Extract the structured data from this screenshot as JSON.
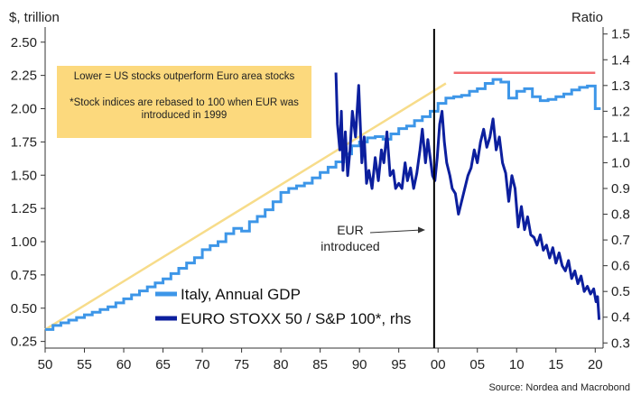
{
  "chart_data": {
    "type": "line",
    "left_axis_unit": "$, trillion",
    "right_axis_unit": "Ratio",
    "x_ticks": [
      "50",
      "55",
      "60",
      "65",
      "70",
      "75",
      "80",
      "85",
      "90",
      "95",
      "00",
      "05",
      "10",
      "15",
      "20"
    ],
    "y_left_ticks": [
      "0.25",
      "0.50",
      "0.75",
      "1.00",
      "1.25",
      "1.50",
      "1.75",
      "2.00",
      "2.25",
      "2.50"
    ],
    "y_right_ticks": [
      "0.3",
      "0.4",
      "0.5",
      "0.6",
      "0.7",
      "0.8",
      "0.9",
      "1.0",
      "1.1",
      "1.2",
      "1.3",
      "1.4",
      "1.5"
    ],
    "x_range": [
      1950,
      2021
    ],
    "y_left_range": [
      0.2,
      2.6
    ],
    "y_right_range": [
      0.28,
      1.52
    ],
    "annotation_box": {
      "line1": "Lower = US stocks outperform Euro area stocks",
      "line2": "*Stock indices are rebased to 100 when EUR was",
      "line3": "introduced in 1999"
    },
    "eur_label": {
      "line1": "EUR",
      "line2": "introduced"
    },
    "eur_year": 1999.5,
    "source": "Source: Nordea and Macrobond",
    "legend": [
      {
        "label": "Italy, Annual GDP",
        "color": "#3d96e8"
      },
      {
        "label": "EURO STOXX 50 / S&P 100*, rhs",
        "color": "#0c1f9e"
      }
    ],
    "colors": {
      "gdp": "#3d96e8",
      "ratio": "#0c1f9e",
      "trend_pre": "#f7dc8a",
      "trend_post": "#f26b6f",
      "box": "#fcd97d",
      "eur_line": "#000000"
    },
    "series": [
      {
        "name": "Italy, Annual GDP",
        "axis": "left",
        "step": true,
        "x": [
          1950,
          1951,
          1952,
          1953,
          1954,
          1955,
          1956,
          1957,
          1958,
          1959,
          1960,
          1961,
          1962,
          1963,
          1964,
          1965,
          1966,
          1967,
          1968,
          1969,
          1970,
          1971,
          1972,
          1973,
          1974,
          1975,
          1976,
          1977,
          1978,
          1979,
          1980,
          1981,
          1982,
          1983,
          1984,
          1985,
          1986,
          1987,
          1988,
          1989,
          1990,
          1991,
          1992,
          1993,
          1994,
          1995,
          1996,
          1997,
          1998,
          1999,
          2000,
          2001,
          2002,
          2003,
          2004,
          2005,
          2006,
          2007,
          2008,
          2009,
          2010,
          2011,
          2012,
          2013,
          2014,
          2015,
          2016,
          2017,
          2018,
          2019,
          2020
        ],
        "values": [
          0.34,
          0.37,
          0.39,
          0.41,
          0.43,
          0.45,
          0.47,
          0.49,
          0.51,
          0.54,
          0.57,
          0.6,
          0.63,
          0.66,
          0.69,
          0.72,
          0.76,
          0.8,
          0.84,
          0.88,
          0.94,
          0.97,
          1.0,
          1.06,
          1.1,
          1.08,
          1.15,
          1.19,
          1.24,
          1.3,
          1.37,
          1.4,
          1.42,
          1.44,
          1.48,
          1.52,
          1.56,
          1.6,
          1.66,
          1.72,
          1.75,
          1.78,
          1.79,
          1.77,
          1.81,
          1.85,
          1.87,
          1.91,
          1.94,
          1.98,
          2.04,
          2.08,
          2.09,
          2.1,
          2.13,
          2.15,
          2.19,
          2.22,
          2.2,
          2.08,
          2.13,
          2.15,
          2.09,
          2.06,
          2.07,
          2.09,
          2.11,
          2.14,
          2.16,
          2.17,
          2.0
        ]
      },
      {
        "name": "Italy GDP trend 1950-2000",
        "axis": "left",
        "x": [
          1950,
          2001
        ],
        "values": [
          0.34,
          2.19
        ]
      },
      {
        "name": "Italy GDP level since 2002",
        "axis": "left",
        "x": [
          2002,
          2020
        ],
        "values": [
          2.27,
          2.27
        ]
      },
      {
        "name": "EURO STOXX 50 / S&P 100*, rhs",
        "axis": "right",
        "x": [
          1987,
          1987.2,
          1987.5,
          1987.7,
          1987.9,
          1988.2,
          1988.5,
          1988.8,
          1989.1,
          1989.5,
          1989.9,
          1990.3,
          1990.6,
          1990.9,
          1991.2,
          1991.6,
          1992,
          1992.4,
          1992.8,
          1993.1,
          1993.5,
          1993.9,
          1994.3,
          1994.6,
          1995,
          1995.4,
          1995.8,
          1996.1,
          1996.5,
          1996.9,
          1997.3,
          1997.7,
          1998,
          1998.4,
          1998.7,
          1999,
          1999.3,
          1999.6,
          1999.9,
          2000.2,
          2000.5,
          2000.8,
          2001.1,
          2001.5,
          2001.8,
          2002.2,
          2002.6,
          2003,
          2003.4,
          2003.8,
          2004.2,
          2004.6,
          2005,
          2005.4,
          2005.8,
          2006.2,
          2006.6,
          2007,
          2007.4,
          2007.8,
          2008.2,
          2008.6,
          2009,
          2009.4,
          2009.8,
          2010.2,
          2010.6,
          2011,
          2011.4,
          2011.8,
          2012.2,
          2012.6,
          2013,
          2013.4,
          2013.8,
          2014.2,
          2014.6,
          2015,
          2015.4,
          2015.8,
          2016.2,
          2016.6,
          2017,
          2017.4,
          2017.8,
          2018.2,
          2018.6,
          2019,
          2019.4,
          2019.8,
          2020.1,
          2020.3,
          2020.5
        ],
        "values": [
          1.35,
          1.15,
          1.05,
          1.2,
          0.97,
          1.12,
          0.95,
          1.05,
          1.2,
          1.1,
          1.3,
          1.0,
          1.1,
          0.92,
          0.97,
          0.9,
          1.02,
          0.93,
          1.05,
          1.0,
          1.12,
          0.95,
          0.97,
          0.9,
          0.92,
          0.9,
          1.0,
          0.93,
          0.98,
          0.9,
          0.96,
          1.05,
          1.13,
          1.0,
          1.09,
          1.02,
          0.95,
          0.93,
          1.02,
          1.15,
          1.2,
          1.08,
          1.0,
          0.95,
          0.9,
          0.88,
          0.8,
          0.85,
          0.9,
          0.95,
          0.98,
          1.05,
          1.0,
          1.08,
          1.13,
          1.06,
          1.1,
          1.17,
          1.05,
          1.1,
          1.0,
          0.96,
          0.85,
          0.95,
          0.9,
          0.75,
          0.83,
          0.74,
          0.79,
          0.72,
          0.71,
          0.68,
          0.72,
          0.66,
          0.68,
          0.63,
          0.67,
          0.61,
          0.65,
          0.6,
          0.58,
          0.62,
          0.55,
          0.58,
          0.53,
          0.56,
          0.5,
          0.52,
          0.49,
          0.51,
          0.46,
          0.48,
          0.39
        ]
      }
    ]
  }
}
